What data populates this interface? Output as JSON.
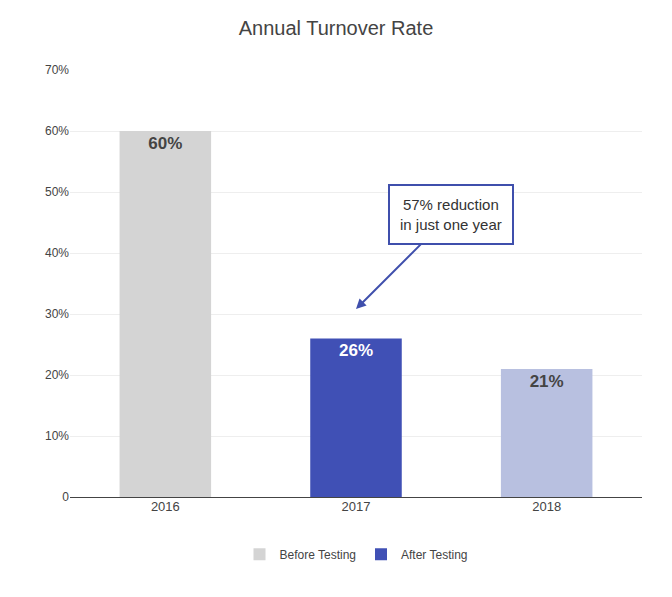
{
  "chart_data": {
    "type": "bar",
    "title": "Annual Turnover Rate",
    "categories": [
      "2016",
      "2017",
      "2018"
    ],
    "series": [
      {
        "name": "Before Testing",
        "color": "#d4d4d4",
        "values": [
          60,
          null,
          null
        ],
        "value_labels": [
          "60%",
          null,
          null
        ]
      },
      {
        "name": "After Testing",
        "colors": [
          "#4050b5",
          "#4050b5",
          "#b8c0e0"
        ],
        "values": [
          null,
          26,
          21
        ],
        "value_labels": [
          null,
          "26%",
          "21%"
        ]
      }
    ],
    "ylim": [
      0,
      70
    ],
    "yticks": [
      0,
      {
        "value": 10,
        "label": "10%"
      },
      {
        "value": 20,
        "label": "20%"
      },
      {
        "value": 30,
        "label": "30%"
      },
      {
        "value": 40,
        "label": "40%"
      },
      {
        "value": 50,
        "label": "50%"
      },
      {
        "value": 60,
        "label": "60%"
      },
      {
        "value": 70,
        "label": "70%"
      }
    ],
    "grid": true,
    "legend": "bottom",
    "data_labels": true,
    "annotations": [
      {
        "text": "57% reduction\nin just one year",
        "color": "#3f4fac"
      }
    ]
  }
}
